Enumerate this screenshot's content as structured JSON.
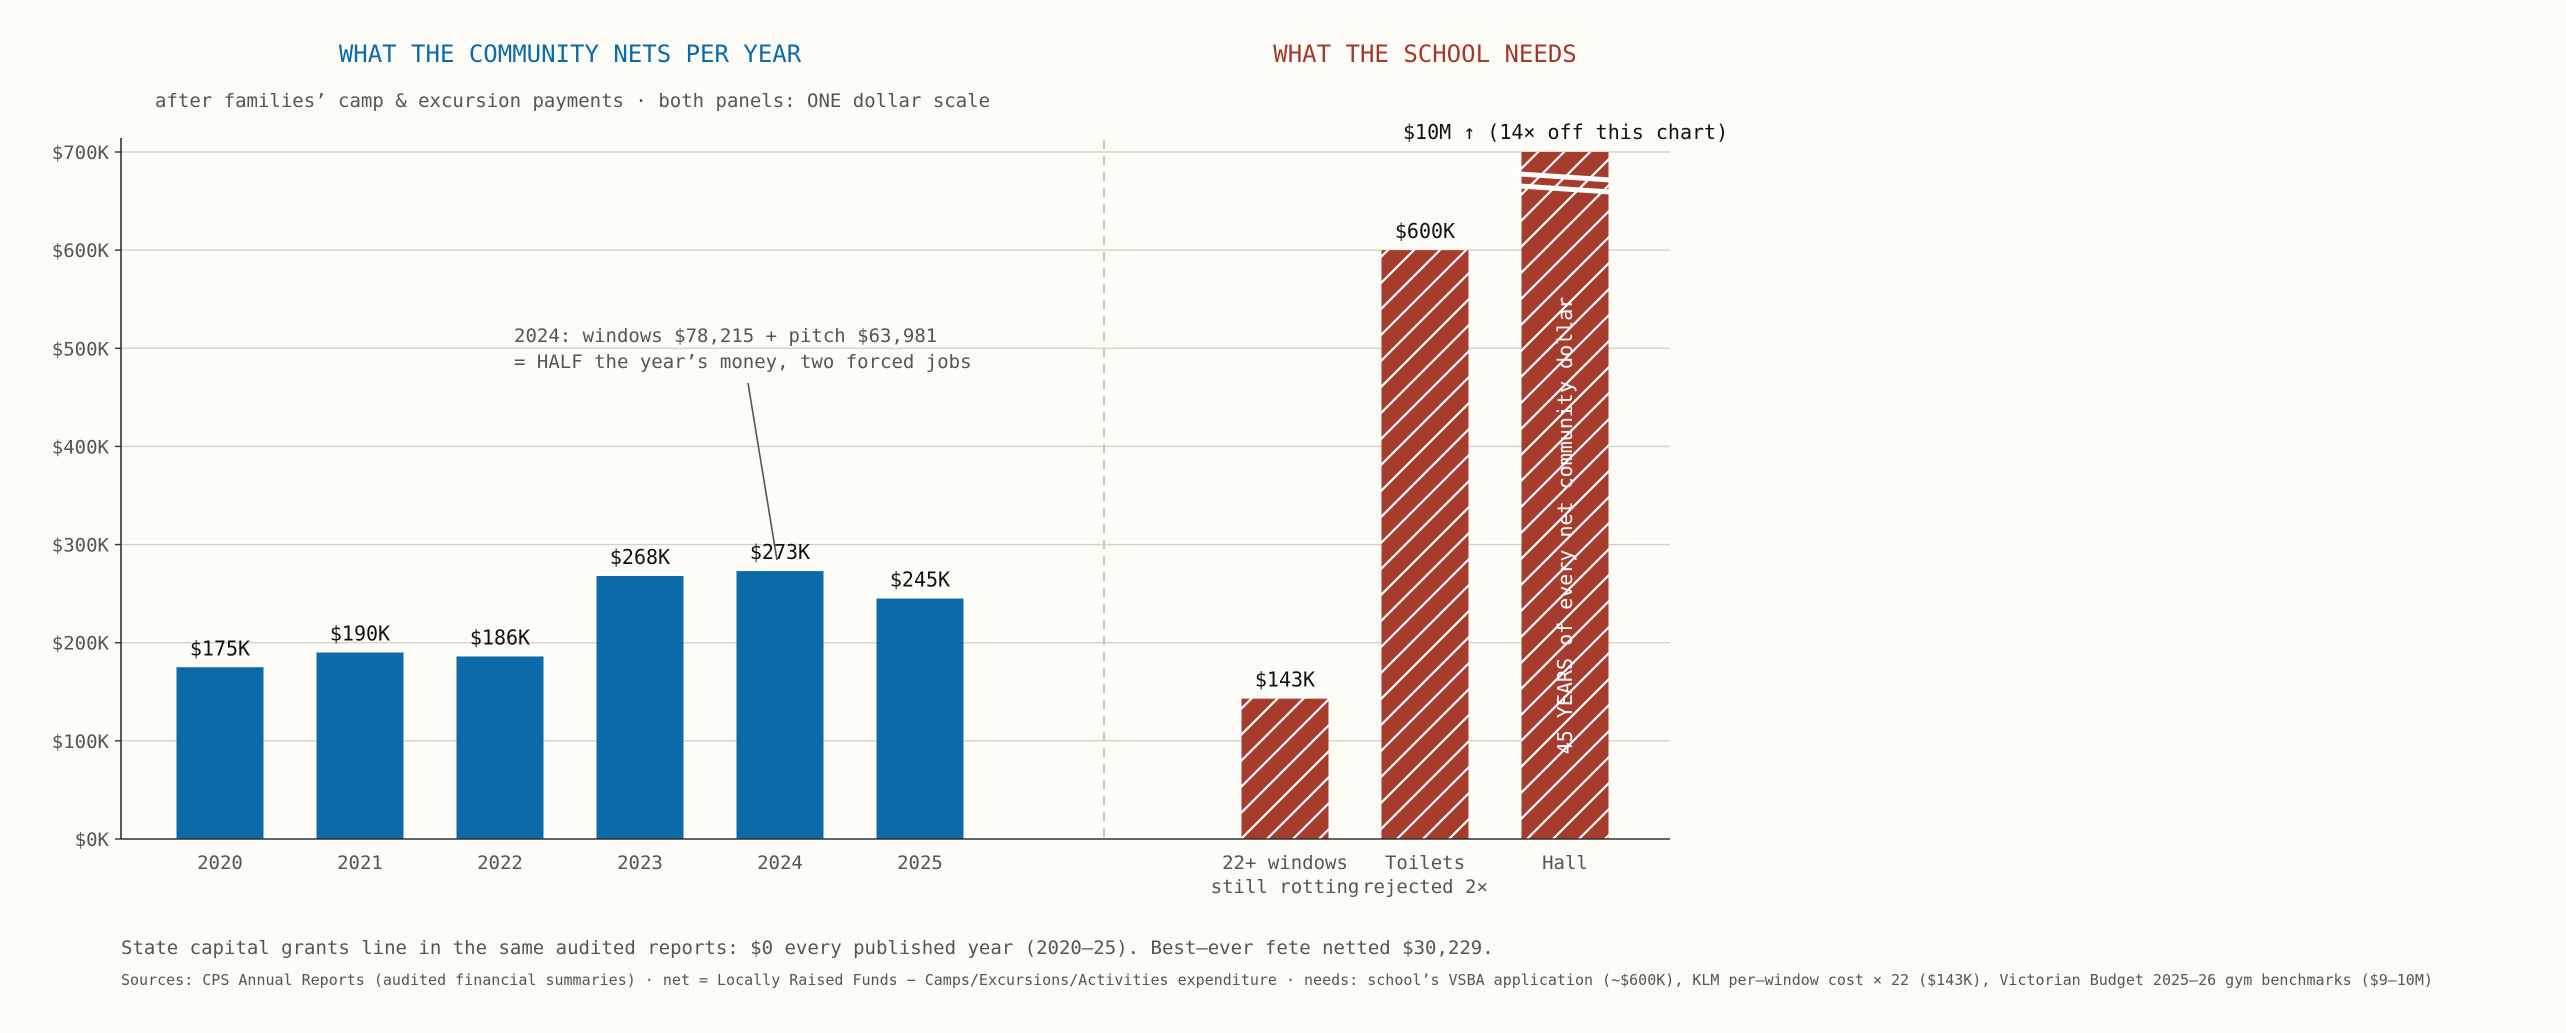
{
  "titles": {
    "left": "WHAT THE COMMUNITY NETS PER YEAR",
    "right": "WHAT THE SCHOOL NEEDS",
    "subtitle": "after families’ camp & excursion payments · both panels: ONE dollar scale"
  },
  "colors": {
    "community": "#0d6aa8",
    "needs": "#a53c2e",
    "grid": "#d3d3c7",
    "divider": "#c8c8b0",
    "axis": "#333333",
    "background": "#fdfcf7"
  },
  "chart_data": {
    "type": "bar",
    "ylim": [
      0,
      700000
    ],
    "grid": true,
    "y_ticks": [
      {
        "value": 0,
        "label": "$0K"
      },
      {
        "value": 100000,
        "label": "$100K"
      },
      {
        "value": 200000,
        "label": "$200K"
      },
      {
        "value": 300000,
        "label": "$300K"
      },
      {
        "value": 400000,
        "label": "$400K"
      },
      {
        "value": 500000,
        "label": "$500K"
      },
      {
        "value": 600000,
        "label": "$600K"
      },
      {
        "value": 700000,
        "label": "$700K"
      }
    ],
    "community": {
      "categories": [
        "2020",
        "2021",
        "2022",
        "2023",
        "2024",
        "2025"
      ],
      "values": [
        175000,
        190000,
        186000,
        268000,
        273000,
        245000
      ],
      "labels": [
        "$175K",
        "$190K",
        "$186K",
        "$268K",
        "$273K",
        "$245K"
      ]
    },
    "needs": {
      "categories": [
        [
          "22+ windows",
          "still rotting"
        ],
        [
          "Toilets",
          "rejected 2×"
        ],
        [
          "Hall"
        ]
      ],
      "values": [
        143000,
        600000,
        10000000
      ],
      "labels": [
        "$143K",
        "$600K",
        ""
      ],
      "truncated_label": "$10M ↑ (14× off this chart)",
      "hall_text": "45 YEARS of every net community dollar"
    },
    "annotation": {
      "lines": [
        "2024: windows $78,215 + pitch $63,981",
        "= HALF the year’s money, two forced jobs"
      ],
      "target_category": "2024"
    }
  },
  "footer": {
    "main": "State capital grants line in the same audited reports: $0 every published year (2020–25). Best–ever fete netted $30,229.",
    "sources": "Sources: CPS Annual Reports (audited financial summaries) · net = Locally Raised Funds − Camps/Excursions/Activities expenditure · needs: school’s VSBA application (~$600K), KLM per–window cost × 22 ($143K), Victorian Budget 2025–26 gym benchmarks ($9–10M)"
  }
}
